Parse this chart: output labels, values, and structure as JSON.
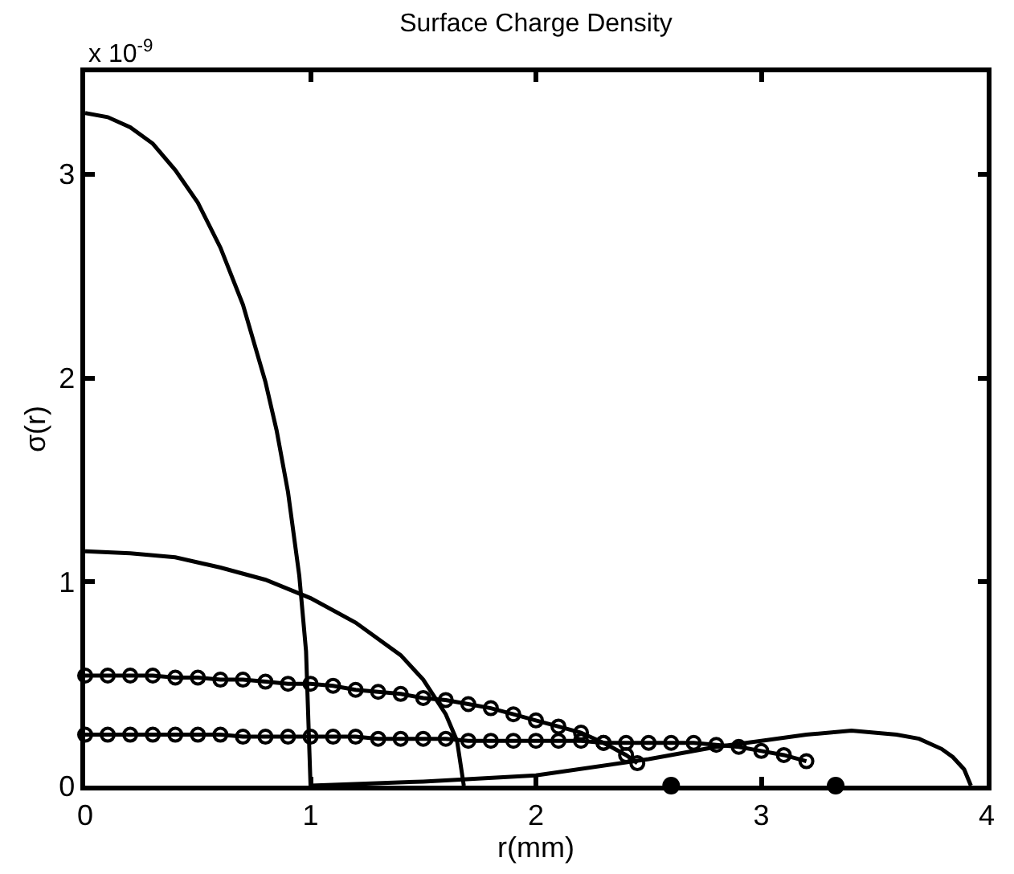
{
  "chart_data": {
    "type": "line",
    "title": "Surface Charge Density",
    "xlabel": "r(mm)",
    "ylabel": "σ(r)",
    "annotations": [
      "x 10$^{-9}$"
    ],
    "xlim": [
      0,
      4
    ],
    "xticks": [
      0,
      1,
      2,
      3,
      4
    ],
    "ylim": [
      0,
      3.5
    ],
    "yticks": [
      0,
      1,
      2,
      3
    ],
    "series": [
      {
        "color": "#000000",
        "marker": "none",
        "x": [
          0,
          0.1,
          0.2,
          0.3,
          0.4,
          0.5,
          0.6,
          0.7,
          0.8,
          0.85,
          0.9,
          0.95,
          0.98,
          1.0
        ],
        "values": [
          3.3,
          3.28,
          3.23,
          3.15,
          3.02,
          2.86,
          2.64,
          2.36,
          1.98,
          1.74,
          1.44,
          1.03,
          0.66,
          0
        ]
      },
      {
        "color": "#000000",
        "marker": "none",
        "x": [
          0,
          0.2,
          0.4,
          0.6,
          0.8,
          1.0,
          1.2,
          1.4,
          1.5,
          1.6,
          1.65,
          1.68
        ],
        "values": [
          1.15,
          1.14,
          1.12,
          1.07,
          1.01,
          0.92,
          0.8,
          0.64,
          0.52,
          0.35,
          0.22,
          0
        ]
      },
      {
        "color": "#000000",
        "marker": "circle",
        "x": [
          0,
          0.1,
          0.2,
          0.3,
          0.4,
          0.5,
          0.6,
          0.7,
          0.8,
          0.9,
          1.0,
          1.1,
          1.2,
          1.3,
          1.4,
          1.5,
          1.6,
          1.7,
          1.8,
          1.9,
          2.0,
          2.1,
          2.2,
          2.3,
          2.4,
          2.45
        ],
        "values": [
          0.54,
          0.54,
          0.54,
          0.54,
          0.53,
          0.53,
          0.52,
          0.52,
          0.51,
          0.5,
          0.5,
          0.49,
          0.47,
          0.46,
          0.45,
          0.43,
          0.42,
          0.4,
          0.38,
          0.35,
          0.32,
          0.29,
          0.26,
          0.21,
          0.15,
          0.11
        ]
      },
      {
        "color": "#000000",
        "marker": "circle",
        "x": [
          0,
          0.1,
          0.2,
          0.3,
          0.4,
          0.5,
          0.6,
          0.7,
          0.8,
          0.9,
          1.0,
          1.1,
          1.2,
          1.3,
          1.4,
          1.5,
          1.6,
          1.7,
          1.8,
          1.9,
          2.0,
          2.1,
          2.2,
          2.3,
          2.4,
          2.5,
          2.6,
          2.7,
          2.8,
          2.9,
          3.0,
          3.1,
          3.2
        ],
        "values": [
          0.25,
          0.25,
          0.25,
          0.25,
          0.25,
          0.25,
          0.25,
          0.24,
          0.24,
          0.24,
          0.24,
          0.24,
          0.24,
          0.23,
          0.23,
          0.23,
          0.23,
          0.22,
          0.22,
          0.22,
          0.22,
          0.22,
          0.22,
          0.21,
          0.21,
          0.21,
          0.21,
          0.21,
          0.2,
          0.19,
          0.17,
          0.15,
          0.12
        ]
      },
      {
        "color": "#000000",
        "marker": "none",
        "x": [
          1.0,
          1.5,
          2.0,
          2.5,
          2.8,
          3.0,
          3.2,
          3.4,
          3.6,
          3.7,
          3.8,
          3.85,
          3.9,
          3.93
        ],
        "values": [
          0,
          0.02,
          0.05,
          0.13,
          0.19,
          0.22,
          0.25,
          0.27,
          0.25,
          0.23,
          0.18,
          0.14,
          0.08,
          0
        ]
      },
      {
        "type": "scatter",
        "color": "#000000",
        "marker": "circle",
        "x": [
          2.6,
          3.33
        ],
        "values": [
          0,
          0
        ]
      }
    ]
  }
}
